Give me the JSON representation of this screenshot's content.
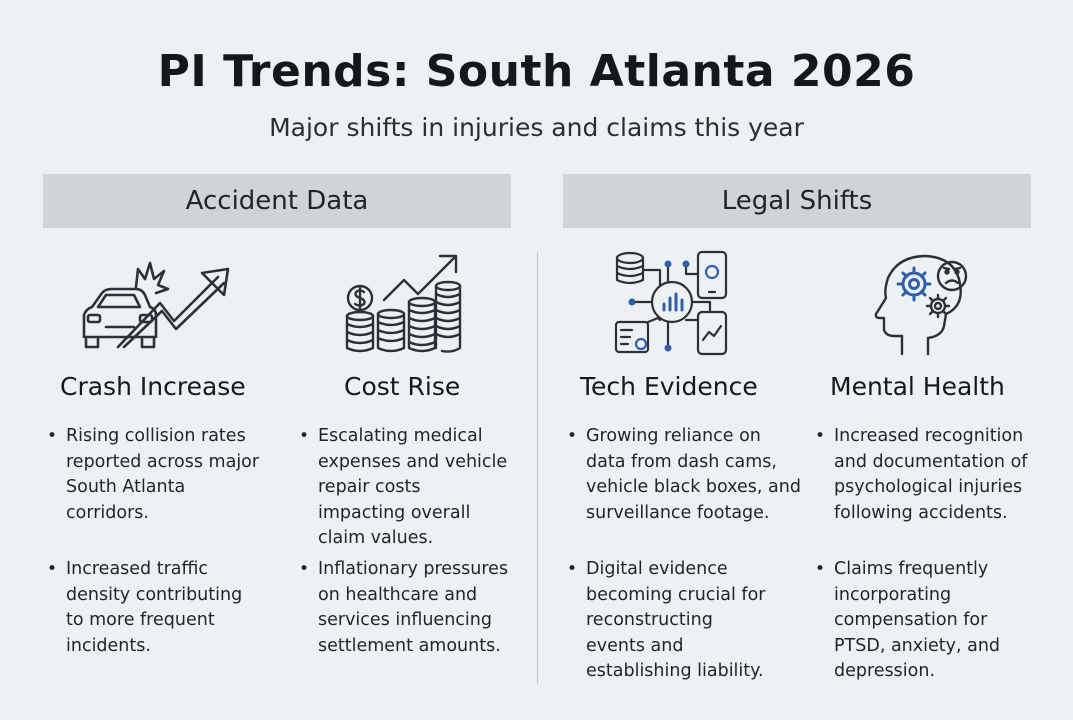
{
  "title": "PI Trends: South Atlanta 2026",
  "subtitle": "Major shifts in injuries and claims this year",
  "sections": {
    "accident": {
      "header": "Accident Data"
    },
    "legal": {
      "header": "Legal Shifts"
    }
  },
  "columns": [
    {
      "icon": "car-crash-trend-icon",
      "title": "Crash Increase",
      "bullets": [
        [
          "Rising collision rates",
          "reported across major",
          "South Atlanta",
          "corridors."
        ],
        [
          "Increased traffic",
          "density contributing",
          "to more frequent",
          "incidents."
        ]
      ]
    },
    {
      "icon": "coins-trend-icon",
      "title": "Cost Rise",
      "bullets": [
        [
          "Escalating medical",
          "expenses and vehicle",
          "repair costs",
          "impacting overall",
          "claim values."
        ],
        [
          "Inflationary pressures",
          "on healthcare and",
          "services influencing",
          "settlement amounts."
        ]
      ]
    },
    {
      "icon": "data-network-icon",
      "title": "Tech Evidence",
      "bullets": [
        [
          "Growing reliance on",
          "data from dash cams,",
          "vehicle black boxes, and",
          "surveillance footage."
        ],
        [
          "Digital evidence",
          "becoming crucial for",
          "reconstructing",
          "events and",
          "establishing liability."
        ]
      ]
    },
    {
      "icon": "head-gears-icon",
      "title": "Mental Health",
      "bullets": [
        [
          "Increased recognition",
          "and documentation of",
          "psychological injuries",
          "following accidents."
        ],
        [
          "Claims frequently",
          "incorporating",
          "compensation for",
          "PTSD, anxiety, and",
          "depression."
        ]
      ]
    }
  ],
  "colors": {
    "background": "#eef1f4",
    "header_band": "#cfd4d9",
    "icon_dark": "#2b3138",
    "icon_accent": "#2f5fa8"
  }
}
